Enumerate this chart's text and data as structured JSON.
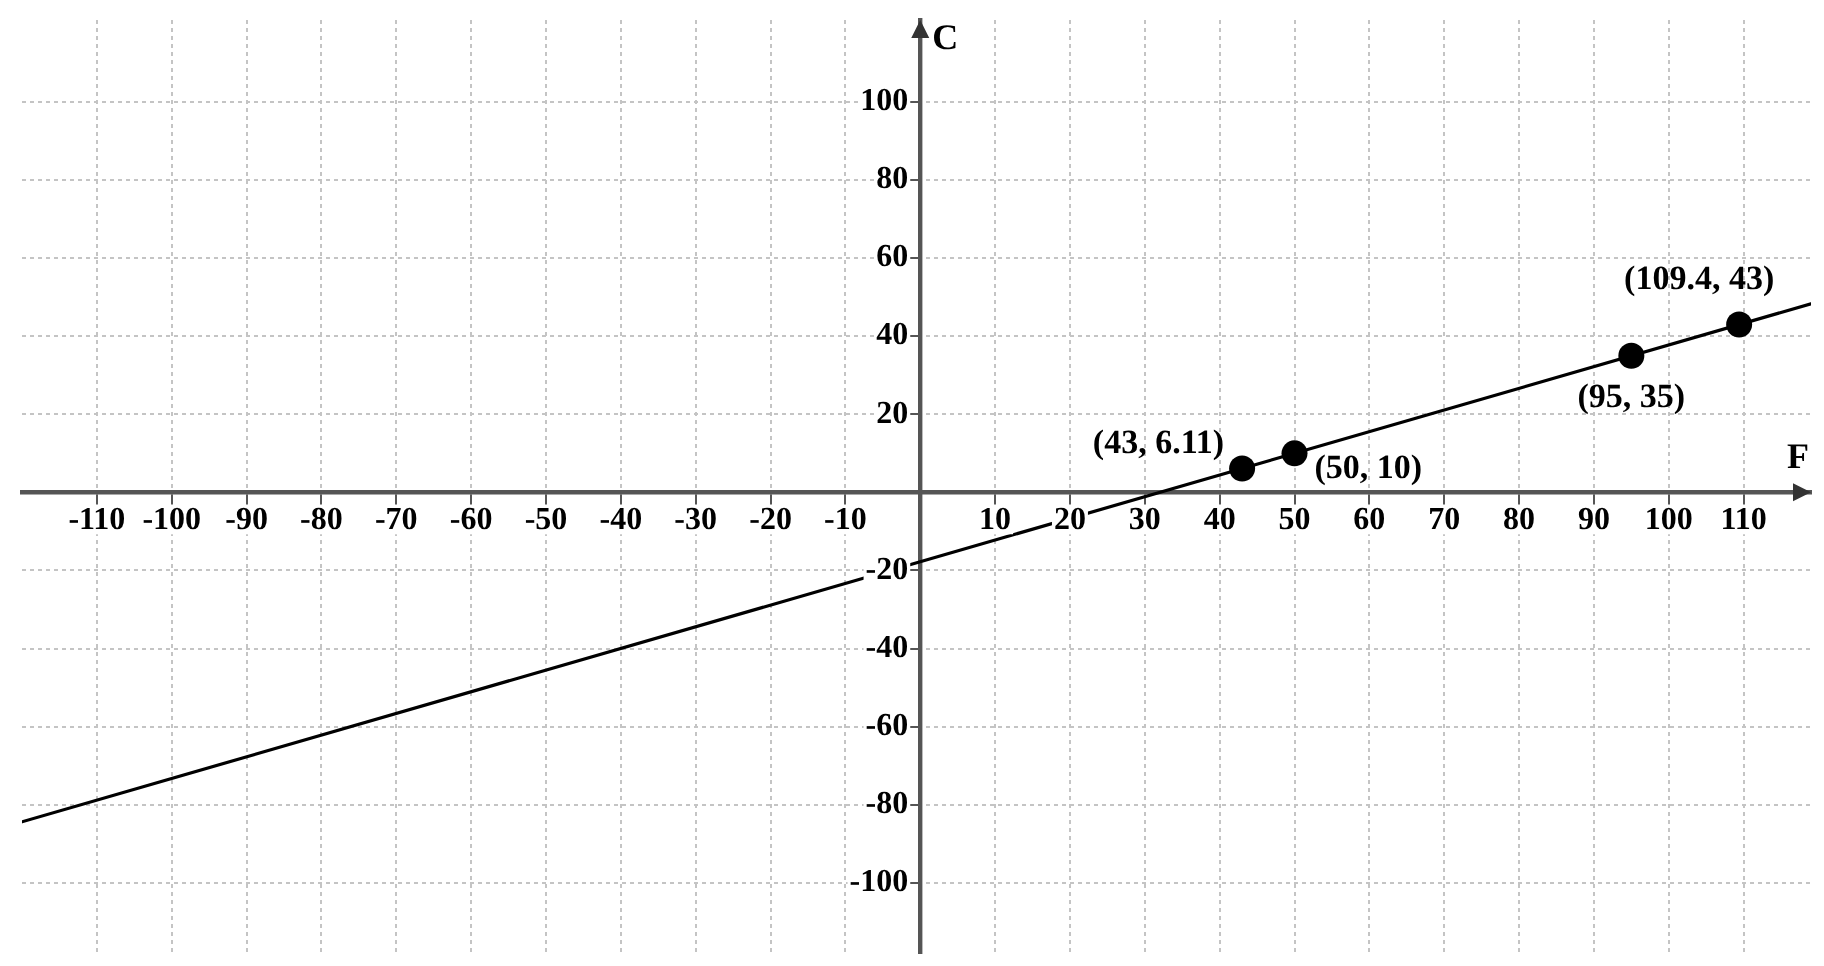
{
  "chart_data": {
    "type": "line",
    "xlabel": "F",
    "ylabel": "C",
    "xlim": [
      -120,
      119
    ],
    "ylim": [
      -118,
      121
    ],
    "xticks": [
      -110,
      -100,
      -90,
      -80,
      -70,
      -60,
      -50,
      -40,
      -30,
      -20,
      -10,
      10,
      20,
      30,
      40,
      50,
      60,
      70,
      80,
      90,
      100,
      110
    ],
    "yticks": [
      -100,
      -80,
      -60,
      -40,
      -20,
      20,
      40,
      60,
      80,
      100
    ],
    "grid": true,
    "legend": false,
    "series": [
      {
        "type": "line",
        "color": "#000000",
        "marker": "none",
        "x": [
          -120,
          119
        ],
        "values": [
          -84.4,
          48.3
        ]
      },
      {
        "type": "scatter",
        "color": "#000000",
        "marker": "circle",
        "x": [
          43,
          50,
          95,
          109.4
        ],
        "values": [
          6.11,
          10,
          35,
          43
        ],
        "value_labels": [
          "(43, 6.11)",
          "(50, 10)",
          "(95, 35)",
          "(109.4, 43)"
        ]
      }
    ]
  }
}
